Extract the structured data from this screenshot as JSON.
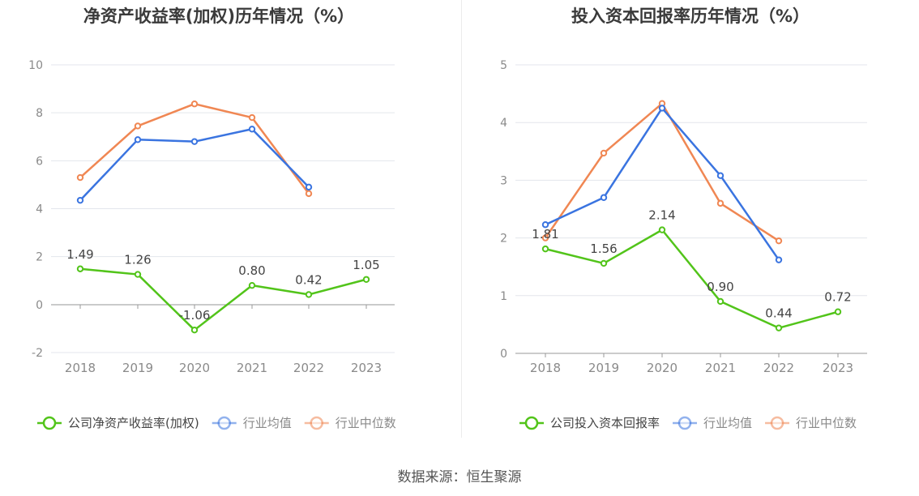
{
  "chart_data": [
    {
      "type": "line",
      "title": "净资产收益率(加权)历年情况（%）",
      "categories": [
        "2018",
        "2019",
        "2020",
        "2021",
        "2022",
        "2023"
      ],
      "ylim": [
        -2,
        10
      ],
      "yticks": [
        "10",
        "8",
        "6",
        "4",
        "2",
        "0",
        "-2"
      ],
      "grid": true,
      "legend_position": "bottom",
      "series": [
        {
          "name": "公司净资产收益率(加权)",
          "color": "#52c41a",
          "values": [
            1.49,
            1.26,
            -1.06,
            0.8,
            0.42,
            1.05
          ],
          "labels": [
            "1.49",
            "1.26",
            "-1.06",
            "0.80",
            "0.42",
            "1.05"
          ]
        },
        {
          "name": "行业均值",
          "color": "#3a74e0",
          "values": [
            4.35,
            6.88,
            6.8,
            7.32,
            4.9,
            null
          ]
        },
        {
          "name": "行业中位数",
          "color": "#f08753",
          "values": [
            5.3,
            7.45,
            8.37,
            7.8,
            4.63,
            null
          ]
        }
      ]
    },
    {
      "type": "line",
      "title": "投入资本回报率历年情况（%）",
      "categories": [
        "2018",
        "2019",
        "2020",
        "2021",
        "2022",
        "2023"
      ],
      "ylim": [
        0,
        5
      ],
      "yticks": [
        "5",
        "4",
        "3",
        "2",
        "1",
        "0"
      ],
      "grid": true,
      "legend_position": "bottom",
      "series": [
        {
          "name": "公司投入资本回报率",
          "color": "#52c41a",
          "values": [
            1.81,
            1.56,
            2.14,
            0.9,
            0.44,
            0.72
          ],
          "labels": [
            "1.81",
            "1.56",
            "2.14",
            "0.90",
            "0.44",
            "0.72"
          ]
        },
        {
          "name": "行业均值",
          "color": "#3a74e0",
          "values": [
            2.23,
            2.7,
            4.25,
            3.08,
            1.62,
            null
          ]
        },
        {
          "name": "行业中位数",
          "color": "#f08753",
          "values": [
            2.0,
            3.47,
            4.33,
            2.6,
            1.95,
            null
          ]
        }
      ]
    }
  ],
  "source": {
    "label": "数据来源：",
    "name": "恒生聚源"
  }
}
